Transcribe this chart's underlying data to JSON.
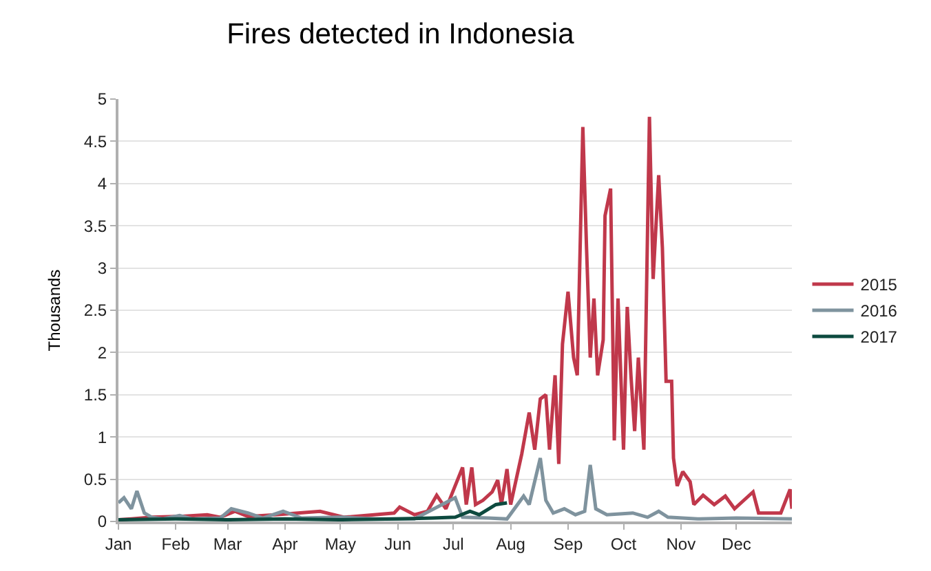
{
  "chart_data": {
    "type": "line",
    "title": "Fires detected in Indonesia",
    "ylabel": "Thousands",
    "legend": "right",
    "grid": "y",
    "line_style": "solid",
    "marker": "none",
    "xlim": [
      "--01-01",
      "--12-31"
    ],
    "xticks": [
      {
        "value": "--01-01",
        "label": "Jan"
      },
      {
        "value": "--02-01",
        "label": "Feb"
      },
      {
        "value": "--03-01",
        "label": "Mar"
      },
      {
        "value": "--04-01",
        "label": "Apr"
      },
      {
        "value": "--05-01",
        "label": "May"
      },
      {
        "value": "--06-01",
        "label": "Jun"
      },
      {
        "value": "--07-01",
        "label": "Jul"
      },
      {
        "value": "--08-01",
        "label": "Aug"
      },
      {
        "value": "--09-01",
        "label": "Sep"
      },
      {
        "value": "--10-01",
        "label": "Oct"
      },
      {
        "value": "--11-01",
        "label": "Nov"
      },
      {
        "value": "--12-01",
        "label": "Dec"
      }
    ],
    "ylim": [
      0,
      5
    ],
    "yticks": [
      0,
      0.5,
      1,
      1.5,
      2,
      2.5,
      3,
      3.5,
      4,
      4.5,
      5
    ],
    "series": [
      {
        "name": "2015",
        "color": "#c0384b",
        "x": [
          "--01-01",
          "--01-08",
          "--01-19",
          "--02-03",
          "--02-18",
          "--02-25",
          "--03-05",
          "--03-12",
          "--03-27",
          "--04-20",
          "--05-03",
          "--05-30",
          "--06-02",
          "--06-10",
          "--06-17",
          "--06-22",
          "--06-27",
          "--07-06",
          "--07-08",
          "--07-11",
          "--07-13",
          "--07-17",
          "--07-22",
          "--07-25",
          "--07-27",
          "--07-30",
          "--08-01",
          "--08-07",
          "--08-11",
          "--08-14",
          "--08-17",
          "--08-20",
          "--08-22",
          "--08-25",
          "--08-27",
          "--08-29",
          "--09-01",
          "--09-04",
          "--09-06",
          "--09-09",
          "--09-11",
          "--09-13",
          "--09-15",
          "--09-17",
          "--09-20",
          "--09-21",
          "--09-24",
          "--09-26",
          "--09-28",
          "--10-01",
          "--10-03",
          "--10-05",
          "--10-07",
          "--10-09",
          "--10-12",
          "--10-15",
          "--10-17",
          "--10-20",
          "--10-22",
          "--10-24",
          "--10-27",
          "--10-28",
          "--10-30",
          "--11-02",
          "--11-06",
          "--11-08",
          "--11-13",
          "--11-19",
          "--11-25",
          "--11-30",
          "--12-10",
          "--12-13",
          "--12-25",
          "--12-30",
          "--12-31"
        ],
        "values": [
          0.02,
          0.03,
          0.05,
          0.06,
          0.08,
          0.05,
          0.12,
          0.06,
          0.08,
          0.12,
          0.05,
          0.1,
          0.17,
          0.08,
          0.12,
          0.31,
          0.15,
          0.64,
          0.2,
          0.64,
          0.2,
          0.25,
          0.35,
          0.49,
          0.2,
          0.62,
          0.2,
          0.8,
          1.29,
          0.85,
          1.45,
          1.5,
          0.85,
          1.73,
          0.68,
          2.1,
          2.72,
          1.94,
          1.73,
          4.67,
          3.24,
          1.94,
          2.64,
          1.73,
          2.15,
          3.62,
          3.94,
          0.96,
          2.64,
          0.85,
          2.54,
          1.73,
          1.07,
          1.94,
          0.85,
          4.79,
          2.87,
          4.1,
          3.24,
          1.66,
          1.66,
          0.75,
          0.42,
          0.59,
          0.47,
          0.2,
          0.31,
          0.2,
          0.3,
          0.15,
          0.35,
          0.1,
          0.1,
          0.38,
          0.15
        ]
      },
      {
        "name": "2016",
        "color": "#7f939e",
        "x": [
          "--01-01",
          "--01-04",
          "--01-08",
          "--01-11",
          "--01-15",
          "--01-19",
          "--01-25",
          "--02-03",
          "--02-10",
          "--02-25",
          "--03-03",
          "--03-12",
          "--03-20",
          "--03-31",
          "--04-10",
          "--05-01",
          "--05-20",
          "--06-10",
          "--07-02",
          "--07-06",
          "--07-20",
          "--07-30",
          "--08-08",
          "--08-11",
          "--08-17",
          "--08-20",
          "--08-24",
          "--08-30",
          "--09-05",
          "--09-10",
          "--09-13",
          "--09-16",
          "--09-22",
          "--10-06",
          "--10-14",
          "--10-20",
          "--10-25",
          "--11-10",
          "--12-01",
          "--12-31"
        ],
        "values": [
          0.22,
          0.28,
          0.15,
          0.36,
          0.1,
          0.05,
          0.03,
          0.07,
          0.03,
          0.04,
          0.15,
          0.1,
          0.04,
          0.12,
          0.04,
          0.05,
          0.03,
          0.03,
          0.28,
          0.05,
          0.04,
          0.03,
          0.3,
          0.2,
          0.75,
          0.25,
          0.1,
          0.15,
          0.08,
          0.12,
          0.67,
          0.15,
          0.08,
          0.1,
          0.05,
          0.12,
          0.05,
          0.03,
          0.04,
          0.03
        ]
      },
      {
        "name": "2017",
        "color": "#0d4a3f",
        "x": [
          "--01-01",
          "--02-01",
          "--03-01",
          "--04-01",
          "--05-01",
          "--06-01",
          "--06-20",
          "--07-02",
          "--07-10",
          "--07-15",
          "--07-24",
          "--07-30"
        ],
        "values": [
          0.02,
          0.03,
          0.02,
          0.03,
          0.02,
          0.03,
          0.04,
          0.05,
          0.12,
          0.08,
          0.2,
          0.22
        ]
      }
    ]
  }
}
